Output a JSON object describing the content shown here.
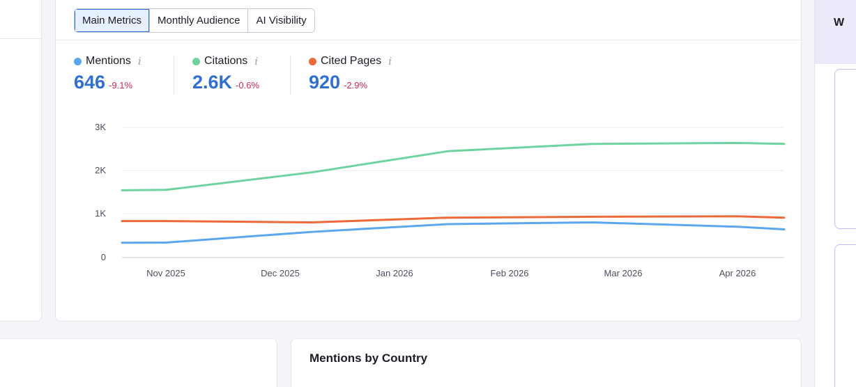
{
  "tabs": [
    {
      "label": "Main Metrics",
      "active": true
    },
    {
      "label": "Monthly Audience",
      "active": false
    },
    {
      "label": "AI Visibility",
      "active": false
    }
  ],
  "metrics": [
    {
      "label": "Mentions",
      "value": "646",
      "change": "-9.1%",
      "color": "#5aa7f0",
      "icon": "info-icon"
    },
    {
      "label": "Citations",
      "value": "2.6K",
      "change": "-0.6%",
      "color": "#6fd3a0",
      "icon": "info-icon"
    },
    {
      "label": "Cited Pages",
      "value": "920",
      "change": "-2.9%",
      "color": "#ec6a3a",
      "icon": "info-icon"
    }
  ],
  "info_glyph": "i",
  "right_panel": {
    "title": "W"
  },
  "country_card": {
    "title": "Mentions by Country"
  },
  "chart_data": {
    "type": "line",
    "x": [
      "Nov 2025",
      "Dec 2025",
      "Jan 2026",
      "Feb 2026",
      "Mar 2026",
      "Apr 2026"
    ],
    "y_ticks": [
      "3K",
      "2K",
      "1K",
      "0"
    ],
    "ylim": [
      0,
      3000
    ],
    "grid": true,
    "series": [
      {
        "name": "Citations",
        "color": "#6fd3a0",
        "x": [
          2025.67,
          2025.75,
          2025.92,
          2026.08,
          2026.25,
          2026.42,
          2026.58
        ],
        "y": [
          1550,
          1560,
          1960,
          2450,
          2620,
          2640,
          2620
        ]
      },
      {
        "name": "Cited Pages",
        "color": "#ec6a3a",
        "x": [
          2025.67,
          2025.75,
          2025.92,
          2026.08,
          2026.25,
          2026.42,
          2026.58
        ],
        "y": [
          840,
          840,
          810,
          920,
          940,
          950,
          920
        ]
      },
      {
        "name": "Mentions",
        "color": "#5aa7f0",
        "x": [
          2025.67,
          2025.75,
          2025.92,
          2026.08,
          2026.25,
          2026.42,
          2026.58
        ],
        "y": [
          340,
          345,
          590,
          770,
          810,
          710,
          650
        ]
      }
    ]
  }
}
